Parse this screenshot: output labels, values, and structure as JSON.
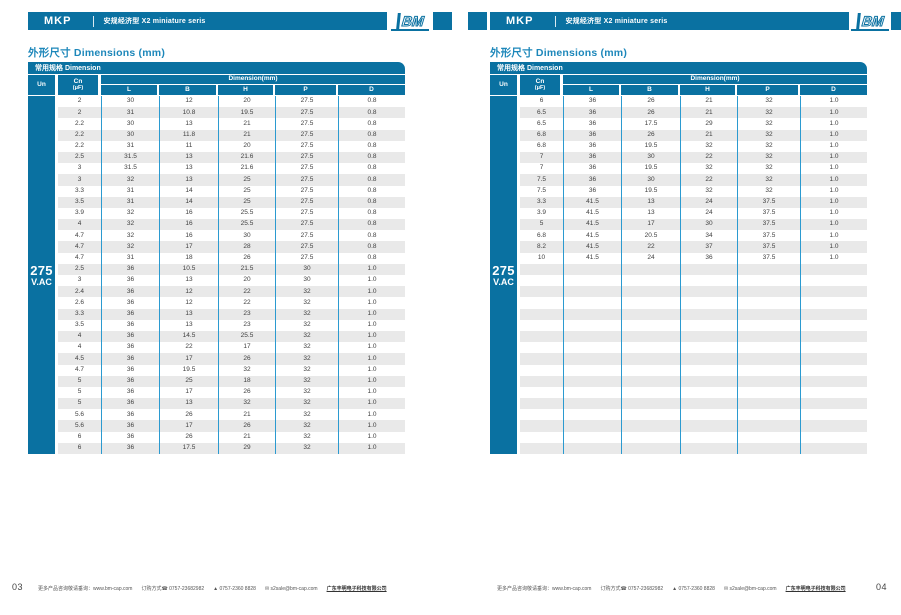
{
  "colors": {
    "blue": "#0a71a1",
    "line": "#2b9ad0",
    "stripe": "#e9e9e9",
    "title": "#1d87ba",
    "text": "#3f3f3f",
    "muted": "#555555"
  },
  "icons": {
    "phone": "☎",
    "fax": "▲",
    "email": "✉"
  },
  "pages": [
    {
      "page_number": "03",
      "header": {
        "product": "MKP",
        "series": "安规经济型 X2 miniature seris",
        "logo": "BM"
      },
      "section_title": "外形尺寸 Dimensions (mm)",
      "table": {
        "caption": "常用规格 Dimension",
        "col_un": "Un",
        "col_cn": "Cn",
        "col_cn_unit": "(μF)",
        "dim_group": "Dimension(mm)",
        "dim_cols": [
          "L",
          "B",
          "H",
          "P",
          "D"
        ],
        "voltage_line1": "275",
        "voltage_line2": "V.AC",
        "rows": [
          [
            "2",
            "30",
            "12",
            "20",
            "27.5",
            "0.8"
          ],
          [
            "2",
            "31",
            "10.8",
            "19.5",
            "27.5",
            "0.8"
          ],
          [
            "2.2",
            "30",
            "13",
            "21",
            "27.5",
            "0.8"
          ],
          [
            "2.2",
            "30",
            "11.8",
            "21",
            "27.5",
            "0.8"
          ],
          [
            "2.2",
            "31",
            "11",
            "20",
            "27.5",
            "0.8"
          ],
          [
            "2.5",
            "31.5",
            "13",
            "21.6",
            "27.5",
            "0.8"
          ],
          [
            "3",
            "31.5",
            "13",
            "21.6",
            "27.5",
            "0.8"
          ],
          [
            "3",
            "32",
            "13",
            "25",
            "27.5",
            "0.8"
          ],
          [
            "3.3",
            "31",
            "14",
            "25",
            "27.5",
            "0.8"
          ],
          [
            "3.5",
            "31",
            "14",
            "25",
            "27.5",
            "0.8"
          ],
          [
            "3.9",
            "32",
            "16",
            "25.5",
            "27.5",
            "0.8"
          ],
          [
            "4",
            "32",
            "16",
            "25.5",
            "27.5",
            "0.8"
          ],
          [
            "4.7",
            "32",
            "16",
            "30",
            "27.5",
            "0.8"
          ],
          [
            "4.7",
            "32",
            "17",
            "28",
            "27.5",
            "0.8"
          ],
          [
            "4.7",
            "31",
            "18",
            "26",
            "27.5",
            "0.8"
          ],
          [
            "2.5",
            "36",
            "10.5",
            "21.5",
            "30",
            "1.0"
          ],
          [
            "3",
            "36",
            "13",
            "20",
            "30",
            "1.0"
          ],
          [
            "2.4",
            "36",
            "12",
            "22",
            "32",
            "1.0"
          ],
          [
            "2.6",
            "36",
            "12",
            "22",
            "32",
            "1.0"
          ],
          [
            "3.3",
            "36",
            "13",
            "23",
            "32",
            "1.0"
          ],
          [
            "3.5",
            "36",
            "13",
            "23",
            "32",
            "1.0"
          ],
          [
            "4",
            "36",
            "14.5",
            "25.5",
            "32",
            "1.0"
          ],
          [
            "4",
            "36",
            "22",
            "17",
            "32",
            "1.0"
          ],
          [
            "4.5",
            "36",
            "17",
            "26",
            "32",
            "1.0"
          ],
          [
            "4.7",
            "36",
            "19.5",
            "32",
            "32",
            "1.0"
          ],
          [
            "5",
            "36",
            "25",
            "18",
            "32",
            "1.0"
          ],
          [
            "5",
            "36",
            "17",
            "26",
            "32",
            "1.0"
          ],
          [
            "5",
            "36",
            "13",
            "32",
            "32",
            "1.0"
          ],
          [
            "5.6",
            "36",
            "26",
            "21",
            "32",
            "1.0"
          ],
          [
            "5.6",
            "36",
            "17",
            "26",
            "32",
            "1.0"
          ],
          [
            "6",
            "36",
            "26",
            "21",
            "32",
            "1.0"
          ],
          [
            "6",
            "36",
            "17.5",
            "29",
            "32",
            "1.0"
          ]
        ]
      },
      "footer": {
        "prefix": "更多产品咨询敬请垂询：www.bm-cap.com",
        "order_label": "订购方式",
        "phone": "0757-23682982",
        "fax": "0757-2360 8828",
        "email": "s2sale@bm-cap.com",
        "company": "广东丰明电子科技有限公司"
      }
    },
    {
      "page_number": "04",
      "header": {
        "product": "MKP",
        "series": "安规经济型 X2 miniature seris",
        "logo": "BM"
      },
      "section_title": "外形尺寸 Dimensions (mm)",
      "table": {
        "caption": "常用规格 Dimension",
        "col_un": "Un",
        "col_cn": "Cn",
        "col_cn_unit": "(μF)",
        "dim_group": "Dimension(mm)",
        "dim_cols": [
          "L",
          "B",
          "H",
          "P",
          "D"
        ],
        "voltage_line1": "275",
        "voltage_line2": "V.AC",
        "rows": [
          [
            "6",
            "36",
            "26",
            "21",
            "32",
            "1.0"
          ],
          [
            "6.5",
            "36",
            "26",
            "21",
            "32",
            "1.0"
          ],
          [
            "6.5",
            "36",
            "17.5",
            "29",
            "32",
            "1.0"
          ],
          [
            "6.8",
            "36",
            "26",
            "21",
            "32",
            "1.0"
          ],
          [
            "6.8",
            "36",
            "19.5",
            "32",
            "32",
            "1.0"
          ],
          [
            "7",
            "36",
            "30",
            "22",
            "32",
            "1.0"
          ],
          [
            "7",
            "36",
            "19.5",
            "32",
            "32",
            "1.0"
          ],
          [
            "7.5",
            "36",
            "30",
            "22",
            "32",
            "1.0"
          ],
          [
            "7.5",
            "36",
            "19.5",
            "32",
            "32",
            "1.0"
          ],
          [
            "3.3",
            "41.5",
            "13",
            "24",
            "37.5",
            "1.0"
          ],
          [
            "3.9",
            "41.5",
            "13",
            "24",
            "37.5",
            "1.0"
          ],
          [
            "5",
            "41.5",
            "17",
            "30",
            "37.5",
            "1.0"
          ],
          [
            "6.8",
            "41.5",
            "20.5",
            "34",
            "37.5",
            "1.0"
          ],
          [
            "8.2",
            "41.5",
            "22",
            "37",
            "37.5",
            "1.0"
          ],
          [
            "10",
            "41.5",
            "24",
            "36",
            "37.5",
            "1.0"
          ],
          [
            "",
            "",
            "",
            "",
            "",
            ""
          ],
          [
            "",
            "",
            "",
            "",
            "",
            ""
          ],
          [
            "",
            "",
            "",
            "",
            "",
            ""
          ],
          [
            "",
            "",
            "",
            "",
            "",
            ""
          ],
          [
            "",
            "",
            "",
            "",
            "",
            ""
          ],
          [
            "",
            "",
            "",
            "",
            "",
            ""
          ],
          [
            "",
            "",
            "",
            "",
            "",
            ""
          ],
          [
            "",
            "",
            "",
            "",
            "",
            ""
          ],
          [
            "",
            "",
            "",
            "",
            "",
            ""
          ],
          [
            "",
            "",
            "",
            "",
            "",
            ""
          ],
          [
            "",
            "",
            "",
            "",
            "",
            ""
          ],
          [
            "",
            "",
            "",
            "",
            "",
            ""
          ],
          [
            "",
            "",
            "",
            "",
            "",
            ""
          ],
          [
            "",
            "",
            "",
            "",
            "",
            ""
          ],
          [
            "",
            "",
            "",
            "",
            "",
            ""
          ],
          [
            "",
            "",
            "",
            "",
            "",
            ""
          ],
          [
            "",
            "",
            "",
            "",
            "",
            ""
          ]
        ]
      },
      "footer": {
        "prefix": "更多产品咨询敬请垂询：www.bm-cap.com",
        "order_label": "订购方式",
        "phone": "0757-23682982",
        "fax": "0757-2360 8828",
        "email": "s2sale@bm-cap.com",
        "company": "广东丰明电子科技有限公司"
      }
    }
  ]
}
